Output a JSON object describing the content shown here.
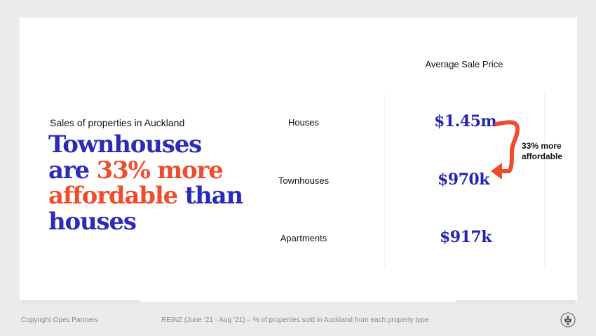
{
  "slide": {
    "subtitle": "Sales of properties in Auckland",
    "headline": {
      "line1": "Townhouses",
      "line2_a": "are ",
      "line2_b": "33% more",
      "line3_a": "affordable",
      "line3_b": " than",
      "line4": "houses"
    },
    "column_header": "Average Sale Price",
    "rows": [
      {
        "label": "Houses",
        "price": "$1.45m"
      },
      {
        "label": "Townhouses",
        "price": "$970k"
      },
      {
        "label": "Apartments",
        "price": "$917k"
      }
    ],
    "annotation": {
      "line1": "33% more",
      "line2": "affordable"
    }
  },
  "footer": {
    "copyright": "Copyright Opes Partners",
    "source": "REINZ (June ‘21 - Aug ‘21) – % of properties sold in Auckland from each property type"
  },
  "colors": {
    "accent_blue": "#2b2bb8",
    "accent_orange": "#ee4c2c",
    "background": "#ebebeb",
    "card": "#ffffff"
  },
  "icons": {
    "logo": "fleur-de-lis-logo-icon",
    "arrow": "curved-arrow-icon"
  }
}
